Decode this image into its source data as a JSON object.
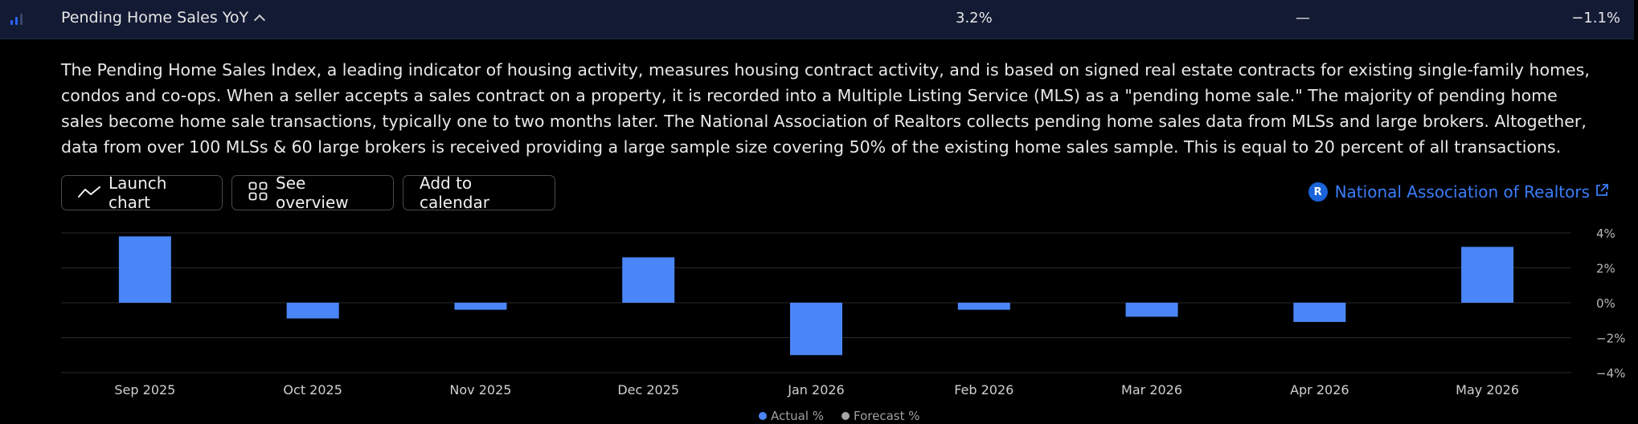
{
  "event": {
    "title": "Pending Home Sales YoY",
    "actual": "3.2%",
    "forecast": "—",
    "prior": "−1.1%"
  },
  "description": "The Pending Home Sales Index, a leading indicator of housing activity, measures housing contract activity, and is based on signed real estate contracts for existing single-family homes, condos and co-ops. When a seller accepts a sales contract on a property, it is recorded into a Multiple Listing Service (MLS) as a \"pending home sale.\" The majority of pending home sales become home sale transactions, typically one to two months later. The National Association of Realtors collects pending home sales data from MLSs and large brokers. Altogether, data from over 100 MLSs & 60 large brokers is received providing a large sample size covering 50% of the existing home sales sample. This is equal to 20 percent of all transactions.",
  "buttons": {
    "launch_chart": "Launch chart",
    "see_overview": "See overview",
    "add_to_calendar": "Add to calendar"
  },
  "source": {
    "label": "National Association of Realtors",
    "logo_letter": "R"
  },
  "colors": {
    "actual": "#4a86f7",
    "forecast": "#a6a6a6",
    "link": "#3b7df8",
    "header_bg": "#131a33"
  },
  "icons": {
    "importance": "importance-bars-icon",
    "expand": "chevron-up-icon",
    "launch": "line-chart-icon",
    "overview": "grid-icon",
    "external": "external-link-icon"
  },
  "legend": {
    "actual": "Actual %",
    "forecast": "Forecast %"
  },
  "chart_data": {
    "type": "bar",
    "categories": [
      "Sep 2025",
      "Oct 2025",
      "Nov 2025",
      "Dec 2025",
      "Jan 2026",
      "Feb 2026",
      "Mar 2026",
      "Apr 2026",
      "May 2026"
    ],
    "series": [
      {
        "name": "Actual %",
        "values": [
          3.8,
          -0.9,
          -0.4,
          2.6,
          -3.0,
          -0.4,
          -0.8,
          -1.1,
          3.2
        ]
      },
      {
        "name": "Forecast %",
        "values": [
          null,
          null,
          null,
          null,
          null,
          null,
          null,
          null,
          null
        ]
      }
    ],
    "y_ticks": [
      "4%",
      "2%",
      "0%",
      "−2%",
      "−4%"
    ],
    "ylim": [
      -4,
      4
    ],
    "grid": true,
    "legend_position": "bottom-center"
  }
}
